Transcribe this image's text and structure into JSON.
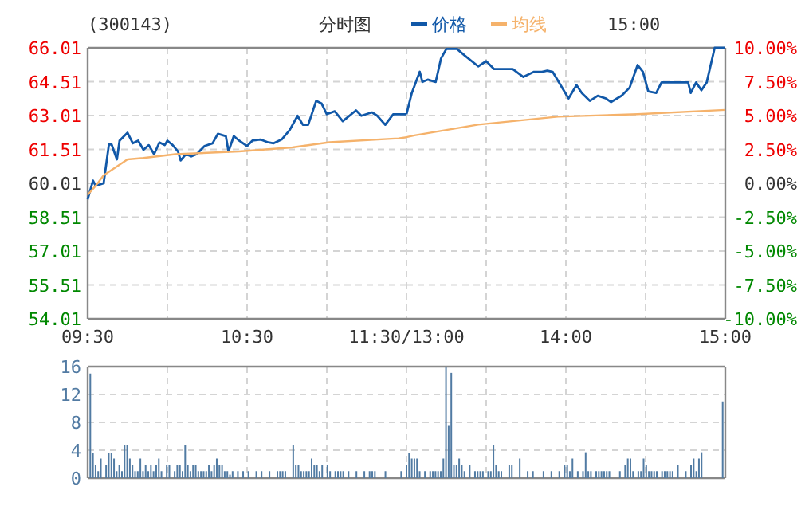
{
  "chart_data": [
    {
      "type": "line",
      "title": "(300143)",
      "subtitle": "分时图",
      "legend": "top",
      "grid": true,
      "xlim": [
        9.5,
        11.5
      ],
      "xticks": [
        {
          "value": 9.5,
          "label": "09:30"
        },
        {
          "value": 10,
          "label": null
        },
        {
          "value": 10.5,
          "label": "10:30"
        },
        {
          "value": 11,
          "label": null
        },
        {
          "value": 11.5,
          "label": "11:30/13:00"
        }
      ],
      "ylim": [
        54.01,
        66.01
      ],
      "yticks": [
        54.01,
        55.51,
        57.01,
        58.51,
        60.01,
        61.51,
        63.01,
        64.51,
        66.01
      ],
      "series": [
        {
          "name": "价格",
          "color": "#1158a8",
          "x": [
            9.5,
            9.5333,
            9.55,
            9.6,
            9.6333,
            9.65,
            9.6833,
            9.7,
            9.75,
            9.7833,
            9.8167,
            9.85,
            9.8833,
            9.9167,
            9.95,
            9.9833,
            10,
            10.0333,
            10.0667,
            10.0833,
            10.1167,
            10.15,
            10.1833,
            10.2333,
            10.2833,
            10.3167,
            10.3667,
            10.3833,
            10.4167,
            10.45,
            10.5,
            10.5333,
            10.5833,
            10.6333,
            10.6667,
            10.7167,
            10.7667,
            10.8167,
            10.85,
            10.8833,
            10.9333,
            10.9667,
            11,
            11.05,
            11.1,
            11.1833,
            11.2167,
            11.2833,
            11.3167,
            11.3667,
            11.4167,
            11.4833,
            11.5
          ],
          "values": [
            59.3,
            60.13,
            59.9,
            60.01,
            61.73,
            61.73,
            61.07,
            61.9,
            62.25,
            61.78,
            61.9,
            61.49,
            61.7,
            61.3,
            61.82,
            61.7,
            61.9,
            61.7,
            61.42,
            61.02,
            61.3,
            61.2,
            61.3,
            61.66,
            61.78,
            62.2,
            62.1,
            61.42,
            62.1,
            61.9,
            61.66,
            61.9,
            61.95,
            61.82,
            61.78,
            61.95,
            62.36,
            63.0,
            62.6,
            62.6,
            63.66,
            63.55,
            63.07,
            63.2,
            62.76,
            63.24,
            63.0,
            63.15,
            63.0,
            62.6,
            63.07,
            63.07,
            63.07
          ]
        },
        {
          "name": "均线",
          "color": "#f5b26b",
          "x": [
            9.5,
            9.55,
            9.6,
            9.75,
            9.85,
            10.05,
            10.45,
            10.7833,
            11.0167,
            11.45,
            11.5
          ],
          "values": [
            59.5,
            59.9,
            60.36,
            61.07,
            61.13,
            61.3,
            61.42,
            61.6,
            61.83,
            62.0,
            62.05
          ]
        }
      ]
    },
    {
      "type": "line",
      "annotations": [
        "15:00"
      ],
      "grid": true,
      "tick_labels": "x",
      "xlim": [
        13,
        15
      ],
      "xticks": [
        {
          "value": 13,
          "label": null
        },
        {
          "value": 13.5,
          "label": null
        },
        {
          "value": 14,
          "label": "14:00"
        },
        {
          "value": 14.5,
          "label": null
        },
        {
          "value": 15,
          "label": "15:00"
        }
      ],
      "ylim": [
        54.01,
        66.01
      ],
      "yticks": [
        54.01,
        55.51,
        57.01,
        58.51,
        60.01,
        61.51,
        63.01,
        64.51,
        66.01
      ],
      "y2lim": [
        -10,
        10
      ],
      "y2ticks": [
        {
          "value": -10,
          "label": "-10.00%"
        },
        {
          "value": -7.5,
          "label": "-7.50%"
        },
        {
          "value": -5,
          "label": "-5.00%"
        },
        {
          "value": -2.5,
          "label": "-2.50%"
        },
        {
          "value": 0,
          "label": "0.00%"
        },
        {
          "value": 2.5,
          "label": "2.50%"
        },
        {
          "value": 5,
          "label": "5.00%"
        },
        {
          "value": 7.5,
          "label": "7.50%"
        },
        {
          "value": 10,
          "label": "10.00%"
        }
      ],
      "series": [
        {
          "color": "#1158a8",
          "x": [
            13,
            13.0333,
            13.0833,
            13.1,
            13.1333,
            13.1833,
            13.2167,
            13.25,
            13.3167,
            13.3667,
            13.45,
            13.5,
            13.55,
            13.6167,
            13.6667,
            13.7333,
            13.8,
            13.85,
            13.8833,
            13.9167,
            13.9667,
            14.0167,
            14.0667,
            14.1,
            14.15,
            14.2,
            14.25,
            14.2833,
            14.35,
            14.4,
            14.45,
            14.4833,
            14.5167,
            14.5667,
            14.6,
            14.6833,
            14.7667,
            14.7833,
            14.8167,
            14.85,
            14.8833,
            14.9333,
            15
          ],
          "values": [
            63.07,
            64.01,
            64.95,
            64.5,
            64.6,
            64.5,
            65.54,
            65.96,
            65.96,
            65.66,
            65.19,
            65.42,
            65.07,
            65.07,
            65.07,
            64.72,
            64.95,
            64.95,
            65.0,
            64.95,
            64.36,
            63.77,
            64.36,
            64.01,
            63.66,
            63.89,
            63.77,
            63.61,
            63.89,
            64.25,
            65.25,
            64.95,
            64.08,
            64.01,
            64.48,
            64.48,
            64.48,
            64.01,
            64.48,
            64.13,
            64.48,
            66.01,
            66.01
          ]
        },
        {
          "color": "#f5b26b",
          "x": [
            13,
            13.05,
            13.45,
            13.95,
            14.45,
            15
          ],
          "values": [
            62.05,
            62.13,
            62.61,
            62.96,
            63.07,
            63.26
          ]
        }
      ]
    },
    {
      "type": "bar",
      "color": "#517ba3",
      "grid": true,
      "categories": [
        null,
        null,
        null,
        null,
        null,
        null,
        null,
        null,
        null,
        null,
        null,
        null,
        null,
        null,
        null,
        null,
        null,
        null,
        null,
        null,
        null,
        null,
        null,
        null,
        null,
        null,
        null,
        null,
        null,
        null,
        null,
        null,
        null,
        null,
        null,
        null,
        null,
        null,
        null,
        null,
        null,
        null,
        null,
        null,
        null,
        null,
        null,
        null,
        null,
        null,
        null,
        null,
        null,
        null,
        null,
        null,
        null,
        null,
        null,
        null,
        null,
        null,
        null,
        null,
        null,
        null,
        null,
        null,
        null,
        null,
        null,
        null,
        null,
        null,
        null,
        null,
        null,
        null,
        null,
        null,
        null,
        null,
        null,
        null,
        null,
        null,
        null,
        null,
        null,
        null,
        null,
        null,
        null,
        null,
        null,
        null,
        null,
        null,
        null,
        null,
        null,
        null,
        null,
        null,
        null,
        null,
        null,
        null,
        null,
        null,
        null,
        null,
        null,
        null,
        null,
        null,
        null,
        null,
        null,
        null,
        null,
        null,
        null,
        null,
        null,
        null,
        null,
        null,
        null,
        null,
        null,
        null,
        null,
        null,
        null,
        null,
        null,
        null,
        null,
        null,
        null,
        null,
        null,
        null,
        null,
        null,
        null,
        null,
        null,
        null,
        null,
        null,
        null,
        null,
        null,
        null,
        null,
        null,
        null,
        null,
        null,
        null,
        null,
        null,
        null,
        null,
        null,
        null,
        null,
        null,
        null,
        null,
        null,
        null,
        null,
        null,
        null,
        null,
        null,
        null,
        null,
        null,
        null,
        null,
        null,
        null,
        null,
        null,
        null,
        null,
        null,
        null,
        null,
        null,
        null,
        null,
        null,
        null,
        null,
        null,
        null,
        null,
        null,
        null,
        null,
        null,
        null,
        null,
        null,
        null,
        null,
        null,
        null,
        null,
        null,
        null,
        null,
        null,
        null,
        null,
        null,
        null,
        null,
        null,
        null,
        null,
        null,
        null,
        null,
        null,
        null,
        null,
        null,
        null,
        null,
        null,
        null,
        null,
        null,
        null,
        null
      ],
      "ylim": [
        0,
        16
      ],
      "yticks": [
        0,
        4,
        8,
        12,
        16
      ],
      "values": [
        15,
        3.6,
        1.9,
        1,
        2.8,
        0,
        1.9,
        3.6,
        3.6,
        2.8,
        1,
        1.9,
        1,
        4.8,
        4.8,
        2.8,
        1.9,
        1,
        1,
        2.8,
        1,
        1.9,
        1,
        1.9,
        1,
        1.9,
        2.8,
        1,
        0,
        1.9,
        1.9,
        0,
        1,
        1.9,
        1.9,
        1,
        4.8,
        1.9,
        1,
        1.9,
        1.9,
        1,
        1,
        1,
        1,
        1.9,
        1,
        1.9,
        2.8,
        1.9,
        1.9,
        1,
        1,
        0.5,
        1,
        0,
        1,
        0,
        1,
        0,
        1,
        0,
        0,
        1,
        0,
        1,
        0,
        0,
        1,
        0,
        0,
        1,
        1,
        1,
        1,
        0,
        0,
        4.8,
        1.9,
        1.9,
        1,
        1,
        1,
        1,
        2.8,
        1.9,
        1.9,
        1,
        1.9,
        0,
        1.9,
        1,
        0,
        1,
        1,
        1,
        1,
        0,
        1,
        0,
        0,
        1,
        0,
        0,
        1,
        0,
        1,
        1,
        1,
        0,
        0,
        0,
        1,
        0,
        0,
        0,
        0,
        0,
        1,
        0,
        1.9,
        3.6,
        2.8,
        2.8,
        2.8,
        1,
        0,
        1,
        0,
        1,
        1,
        1,
        1,
        1,
        2.8,
        16,
        7.6,
        15.1,
        1.9,
        1.9,
        2.8,
        1.9,
        1,
        0,
        1.9,
        0,
        1,
        1,
        1,
        1,
        0,
        1,
        1,
        4.8,
        1.9,
        1,
        1,
        0,
        0,
        1.9,
        1.9,
        0,
        0,
        2.8,
        0,
        0,
        1,
        0,
        1,
        0,
        0,
        0,
        1,
        0,
        0,
        1,
        0,
        0,
        1,
        0,
        1.9,
        1.9,
        1,
        2.8,
        0,
        1,
        0,
        1,
        3.7,
        1,
        1,
        0,
        1,
        1,
        1,
        1,
        1,
        1,
        0,
        0,
        0,
        1,
        0,
        1.9,
        2.8,
        2.8,
        1,
        0,
        1,
        1,
        2.8,
        1.9,
        1,
        1,
        1,
        1,
        0,
        1,
        1,
        1,
        1,
        1,
        0,
        1.9,
        0,
        0,
        1,
        0,
        1.9,
        2.8,
        1,
        2.8,
        3.7,
        0,
        0,
        0,
        0,
        0,
        0,
        0,
        11
      ]
    }
  ]
}
